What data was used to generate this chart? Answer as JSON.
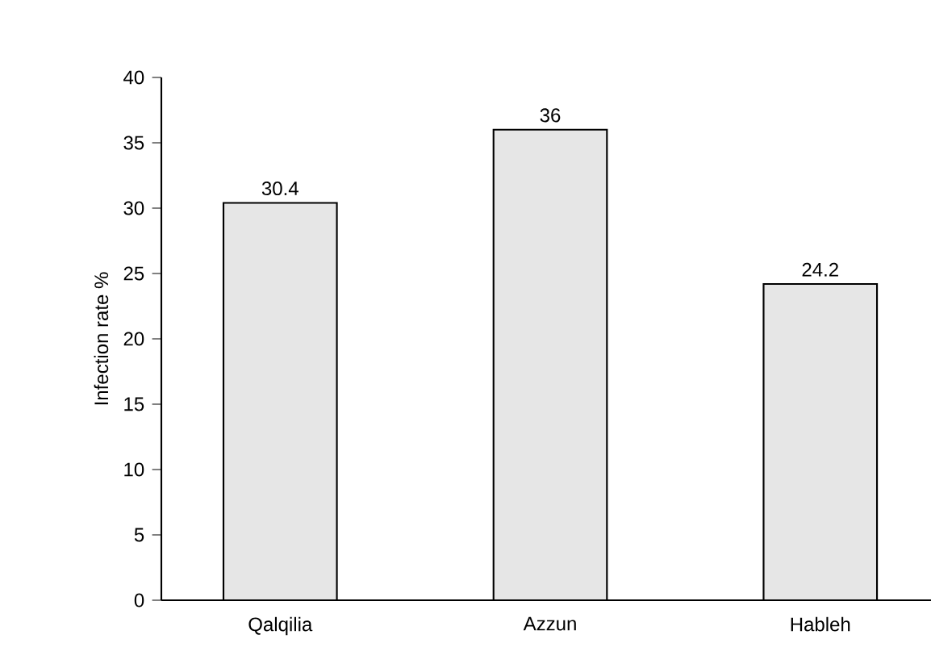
{
  "chart_data": {
    "type": "bar",
    "ylabel": "Infection rate %",
    "categories": [
      "Qalqilia",
      "Azzun",
      "Hableh"
    ],
    "values": [
      30.4,
      36,
      24.2
    ],
    "color": "#e6e6e6",
    "ylim": [
      0,
      40
    ],
    "yticks": [
      0,
      5,
      10,
      15,
      20,
      25,
      30,
      35,
      40
    ],
    "data_labels": true,
    "grid": false
  }
}
